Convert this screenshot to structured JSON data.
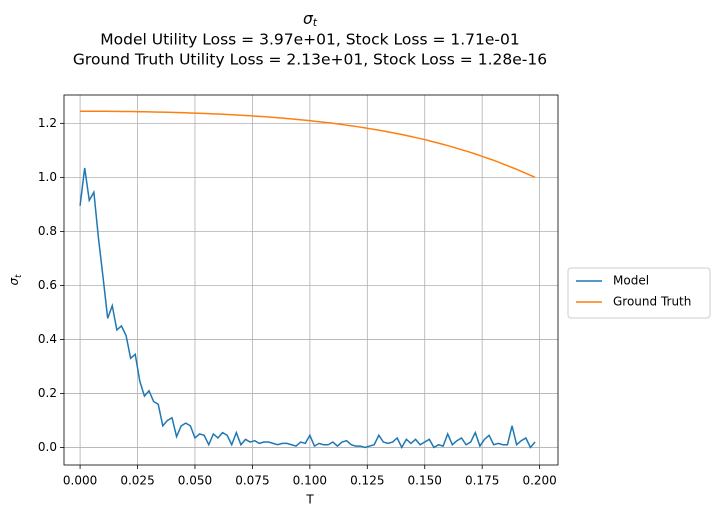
{
  "chart_data": {
    "type": "line",
    "title": "σt",
    "subtitle": [
      "Model Utility Loss = 3.97e+01, Stock Loss = 1.71e-01",
      "Ground Truth Utility Loss = 2.13e+01, Stock Loss = 1.28e-16"
    ],
    "x_label": "T",
    "y_label": "σt",
    "x": [
      0,
      0.002,
      0.004,
      0.006,
      0.008,
      0.01,
      0.012,
      0.014,
      0.016,
      0.018,
      0.02,
      0.022,
      0.024,
      0.026,
      0.028,
      0.03,
      0.032,
      0.034,
      0.036,
      0.038,
      0.04,
      0.042,
      0.044,
      0.046,
      0.048,
      0.05,
      0.052,
      0.054,
      0.056,
      0.058,
      0.06,
      0.062,
      0.064,
      0.066,
      0.068,
      0.07,
      0.072,
      0.074,
      0.076,
      0.078,
      0.08,
      0.082,
      0.084,
      0.086,
      0.088,
      0.09,
      0.092,
      0.094,
      0.096,
      0.098,
      0.1,
      0.102,
      0.104,
      0.106,
      0.108,
      0.11,
      0.112,
      0.114,
      0.116,
      0.118,
      0.12,
      0.122,
      0.124,
      0.126,
      0.128,
      0.13,
      0.132,
      0.134,
      0.136,
      0.138,
      0.14,
      0.142,
      0.144,
      0.146,
      0.148,
      0.15,
      0.152,
      0.154,
      0.156,
      0.158,
      0.16,
      0.162,
      0.164,
      0.166,
      0.168,
      0.17,
      0.172,
      0.174,
      0.176,
      0.178,
      0.18,
      0.182,
      0.184,
      0.186,
      0.188,
      0.19,
      0.192,
      0.194,
      0.196,
      0.198
    ],
    "series": [
      {
        "name": "Model",
        "color": "#1f77b4",
        "values": [
          0.895,
          1.035,
          0.915,
          0.945,
          0.775,
          0.63,
          0.478,
          0.525,
          0.435,
          0.45,
          0.415,
          0.33,
          0.345,
          0.245,
          0.19,
          0.21,
          0.17,
          0.16,
          0.08,
          0.1,
          0.11,
          0.04,
          0.08,
          0.09,
          0.08,
          0.035,
          0.05,
          0.045,
          0.01,
          0.05,
          0.035,
          0.055,
          0.045,
          0.01,
          0.055,
          0.01,
          0.03,
          0.02,
          0.025,
          0.015,
          0.02,
          0.02,
          0.015,
          0.01,
          0.015,
          0.015,
          0.01,
          0.005,
          0.02,
          0.015,
          0.045,
          0.005,
          0.015,
          0.01,
          0.01,
          0.02,
          0.005,
          0.02,
          0.025,
          0.01,
          0.005,
          0.005,
          0,
          0.005,
          0.01,
          0.045,
          0.02,
          0.015,
          0.02,
          0.035,
          0,
          0.03,
          0.015,
          0.03,
          0.01,
          0.02,
          0.03,
          0,
          0.01,
          0.005,
          0.05,
          0.01,
          0.025,
          0.035,
          0.01,
          0.02,
          0.055,
          0.005,
          0.03,
          0.045,
          0.01,
          0.015,
          0.01,
          0.01,
          0.08,
          0.01,
          0.025,
          0.035,
          0,
          0.02
        ]
      },
      {
        "name": "Ground Truth",
        "color": "#ff7f0e",
        "values": [
          1.245,
          1.245,
          1.245,
          1.2449,
          1.2448,
          1.2447,
          1.2446,
          1.2444,
          1.2443,
          1.2441,
          1.244,
          1.2437,
          1.2434,
          1.2432,
          1.2429,
          1.2426,
          1.2422,
          1.2418,
          1.2415,
          1.2411,
          1.2407,
          1.2402,
          1.2396,
          1.2391,
          1.2385,
          1.238,
          1.2373,
          1.2366,
          1.236,
          1.2353,
          1.2346,
          1.2337,
          1.2328,
          1.232,
          1.2311,
          1.2302,
          1.2291,
          1.228,
          1.227,
          1.2259,
          1.2248,
          1.2235,
          1.2221,
          1.2208,
          1.2194,
          1.2181,
          1.2165,
          1.2149,
          1.2132,
          1.2116,
          1.21,
          1.208,
          1.2061,
          1.2041,
          1.2022,
          1.2002,
          1.1979,
          1.1956,
          1.1932,
          1.1909,
          1.1886,
          1.1858,
          1.1831,
          1.1803,
          1.1776,
          1.1748,
          1.1716,
          1.1683,
          1.1651,
          1.1618,
          1.1586,
          1.1549,
          1.1512,
          1.1474,
          1.1437,
          1.14,
          1.1356,
          1.1311,
          1.1267,
          1.1222,
          1.1178,
          1.1127,
          1.1076,
          1.1025,
          1.0974,
          1.0923,
          1.0865,
          1.0807,
          1.0748,
          1.069,
          1.0632,
          1.0565,
          1.0499,
          1.0432,
          1.0365,
          1.0298,
          1.0224,
          1.0149,
          1.0075,
          1.0
        ]
      }
    ],
    "xlim": [
      -0.007,
      0.208
    ],
    "ylim": [
      -0.065,
      1.305
    ],
    "xticks": [
      {
        "value": 0,
        "label": "0.000"
      },
      {
        "value": 0.025,
        "label": "0.025"
      },
      {
        "value": 0.05,
        "label": "0.050"
      },
      {
        "value": 0.075,
        "label": "0.075"
      },
      {
        "value": 0.1,
        "label": "0.100"
      },
      {
        "value": 0.125,
        "label": "0.125"
      },
      {
        "value": 0.15,
        "label": "0.150"
      },
      {
        "value": 0.175,
        "label": "0.175"
      },
      {
        "value": 0.2,
        "label": "0.200"
      }
    ],
    "yticks": [
      {
        "value": 0,
        "label": "0.0"
      },
      0.2,
      0.4,
      0.6,
      0.8,
      {
        "value": 1,
        "label": "1.0"
      },
      1.2
    ],
    "grid": true,
    "legend": "outside-right"
  }
}
